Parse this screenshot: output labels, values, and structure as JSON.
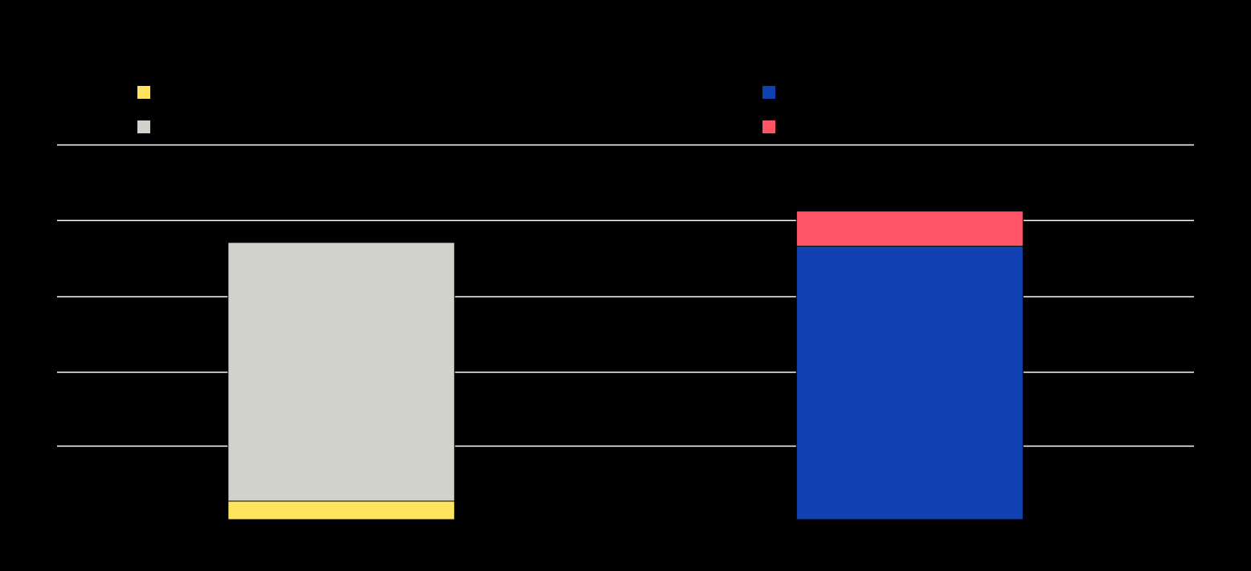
{
  "chart_data": {
    "type": "bar",
    "stacked": true,
    "categories": [
      "",
      ""
    ],
    "series": [
      {
        "values": [
          10,
          0
        ],
        "color": "#ffe45e"
      },
      {
        "values": [
          140,
          0
        ],
        "color": "#d1d2cb"
      },
      {
        "values": [
          0,
          148
        ],
        "color": "#1140b0"
      },
      {
        "values": [
          0,
          19
        ],
        "color": "#ff5468"
      }
    ],
    "ylim": [
      0,
      203
    ],
    "yticks": [
      0,
      40,
      80,
      121,
      162,
      203
    ],
    "grid": true,
    "legend_position": "top",
    "background": "#000000",
    "grid_color": "#ffffff"
  }
}
